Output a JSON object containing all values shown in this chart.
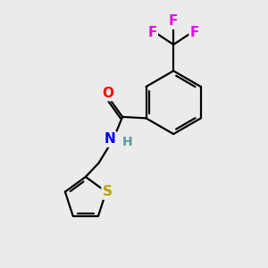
{
  "background_color": "#ebebeb",
  "bond_color": "#000000",
  "atom_colors": {
    "O": "#ff0000",
    "N": "#0000ee",
    "H": "#5a9a9a",
    "F": "#ee00ee",
    "S": "#b8a000",
    "C": "#000000"
  },
  "figsize": [
    3.0,
    3.0
  ],
  "dpi": 100
}
